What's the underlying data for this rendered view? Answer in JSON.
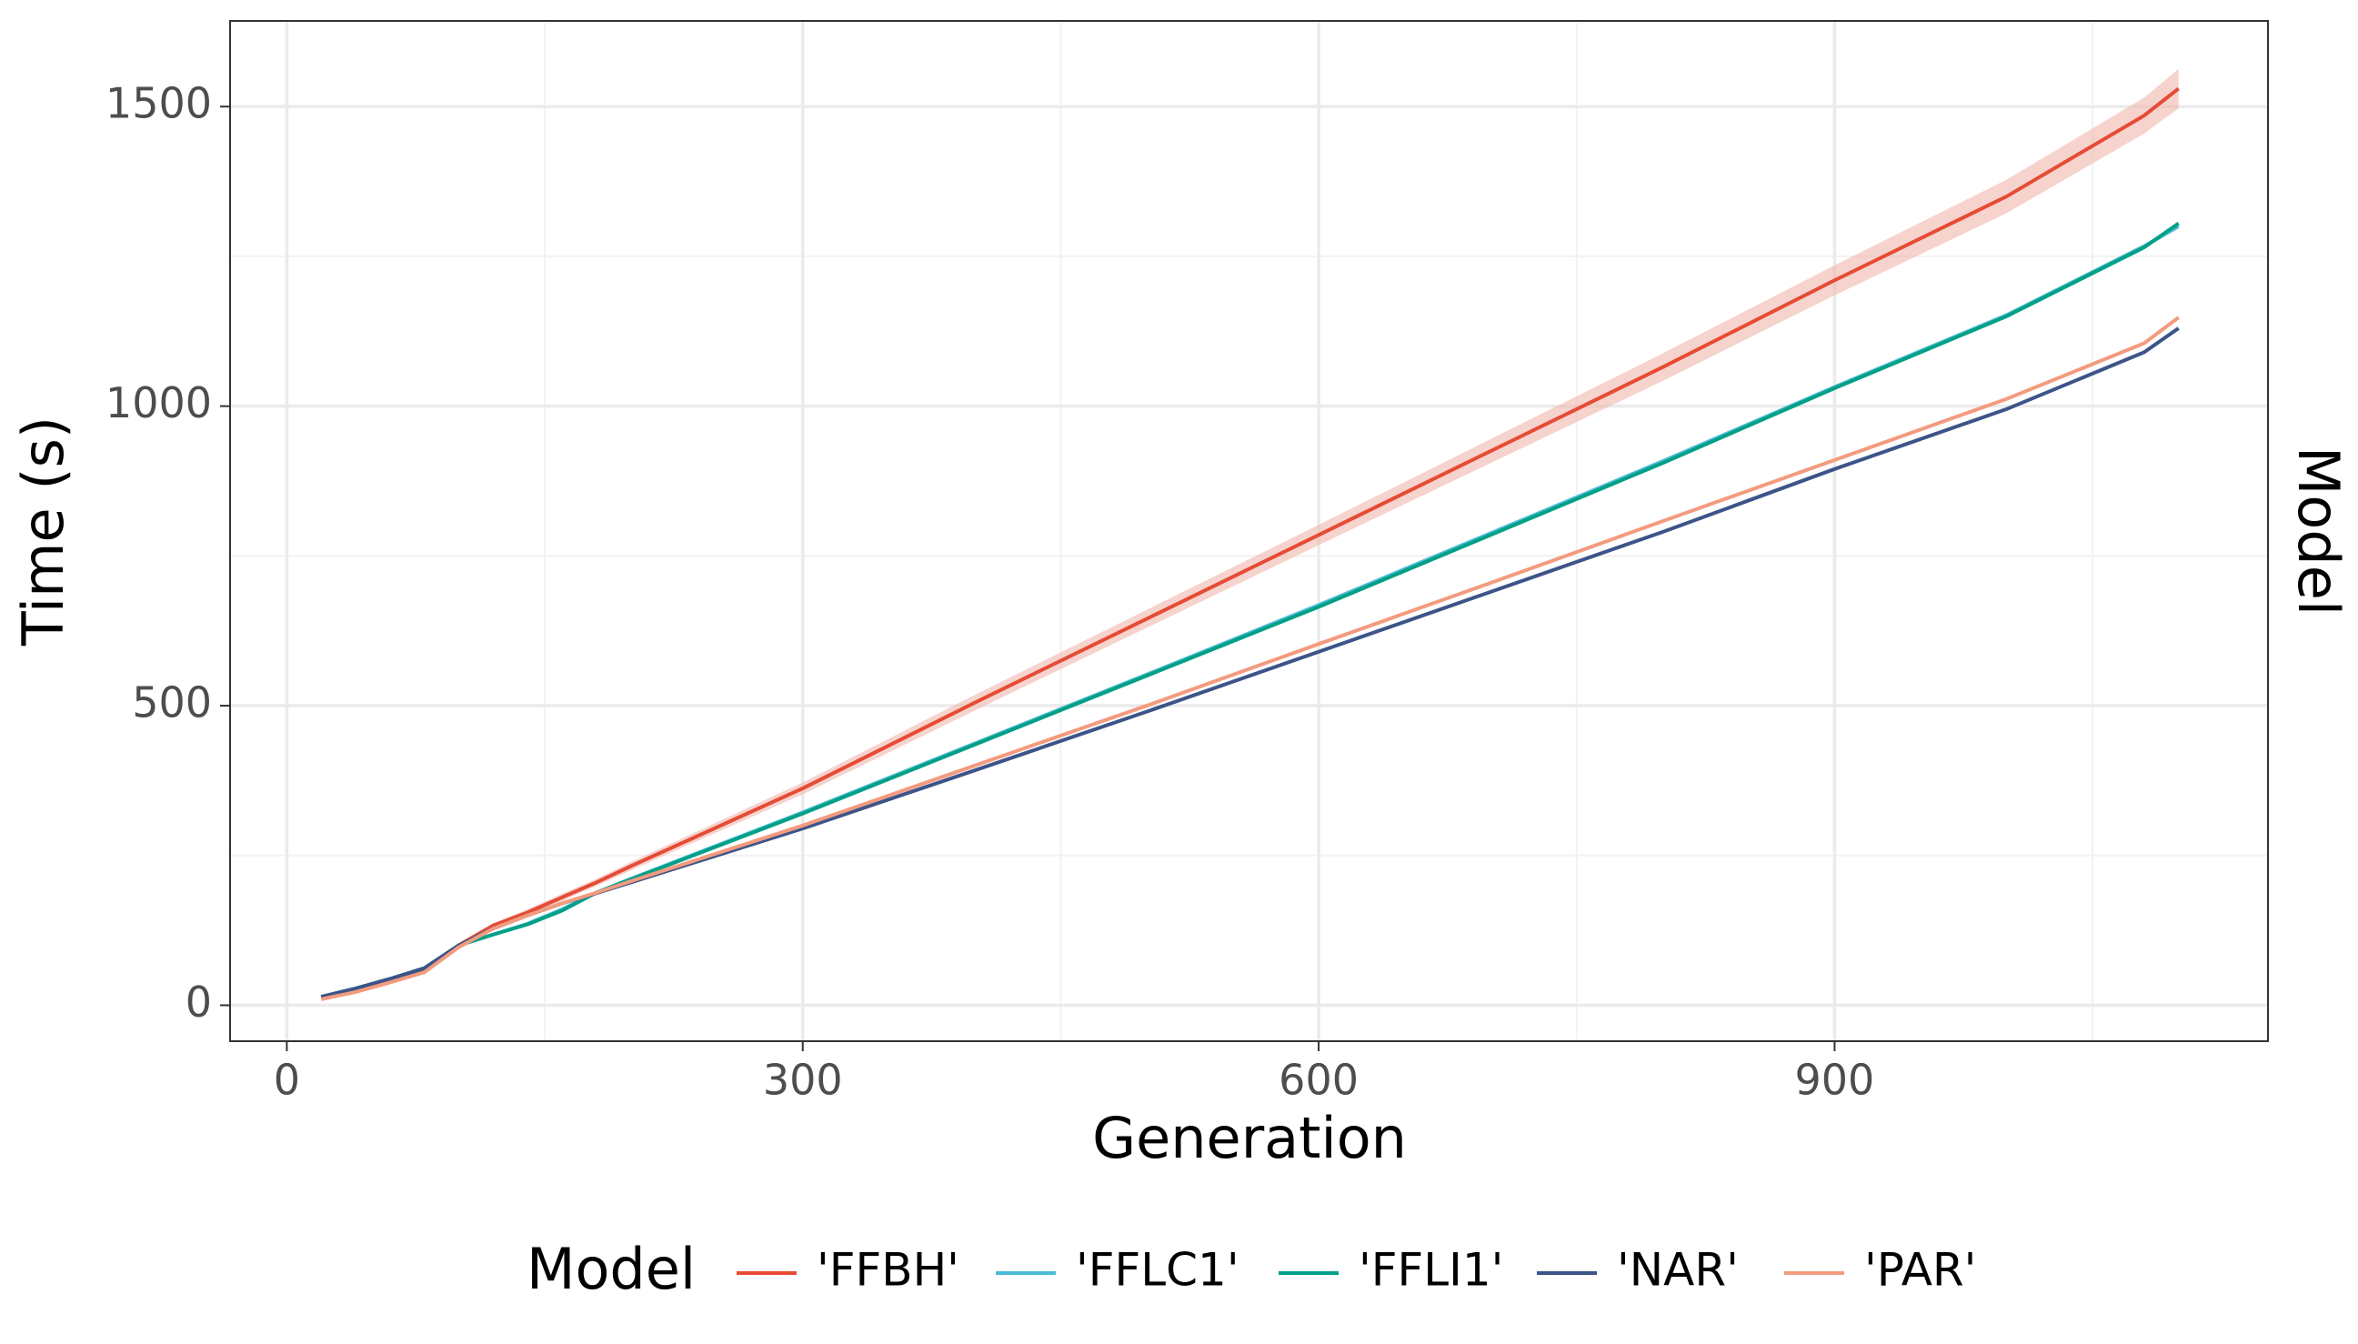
{
  "chart_data": {
    "type": "line",
    "x_label": "Generation",
    "y_label": "Time (s)",
    "strip_label": "Model",
    "legend_title": "Model",
    "legend_position": "bottom",
    "grid": true,
    "x": [
      20,
      40,
      60,
      80,
      100,
      120,
      140,
      160,
      180,
      200,
      300,
      400,
      500,
      600,
      700,
      800,
      900,
      1000,
      1080,
      1100
    ],
    "xlim": [
      -33,
      1152
    ],
    "xticks": [
      0,
      300,
      600,
      900
    ],
    "xminor": [
      150,
      450,
      750,
      1050
    ],
    "ylim": [
      -60,
      1643
    ],
    "yticks": [
      0,
      500,
      1000,
      1500
    ],
    "yminor": [
      250,
      750,
      1250
    ],
    "series": [
      {
        "name": "'FFBH'",
        "color": "#e64b35",
        "band_color": "#f2b5ad",
        "values": [
          12,
          25,
          40,
          58,
          100,
          133,
          155,
          180,
          205,
          232,
          362,
          505,
          645,
          785,
          925,
          1065,
          1210,
          1350,
          1485,
          1530
        ],
        "lower": [
          10,
          23,
          37,
          55,
          96,
          129,
          150,
          174,
          199,
          225,
          352,
          492,
          630,
          768,
          905,
          1042,
          1185,
          1322,
          1455,
          1497
        ],
        "upper": [
          14,
          27,
          43,
          61,
          104,
          137,
          160,
          186,
          211,
          239,
          372,
          518,
          660,
          802,
          945,
          1088,
          1235,
          1378,
          1515,
          1563
        ]
      },
      {
        "name": "'FFLC1'",
        "color": "#4dbbd5",
        "values": [
          14,
          28,
          44,
          62,
          100,
          118,
          136,
          160,
          188,
          211,
          322,
          437,
          552,
          668,
          788,
          908,
          1032,
          1152,
          1267,
          1300
        ]
      },
      {
        "name": "'FFLI1'",
        "color": "#00a087",
        "values": [
          14,
          28,
          44,
          62,
          100,
          118,
          135,
          158,
          188,
          210,
          320,
          435,
          550,
          665,
          785,
          905,
          1030,
          1150,
          1265,
          1305
        ]
      },
      {
        "name": "'NAR'",
        "color": "#3c5488",
        "values": [
          14,
          28,
          44,
          62,
          100,
          128,
          150,
          170,
          187,
          205,
          295,
          392,
          490,
          590,
          690,
          790,
          895,
          995,
          1090,
          1130
        ]
      },
      {
        "name": "'PAR'",
        "color": "#f39b7f",
        "values": [
          10,
          22,
          38,
          55,
          97,
          128,
          150,
          170,
          188,
          207,
          300,
          400,
          500,
          603,
          705,
          808,
          910,
          1012,
          1105,
          1148
        ]
      }
    ]
  }
}
